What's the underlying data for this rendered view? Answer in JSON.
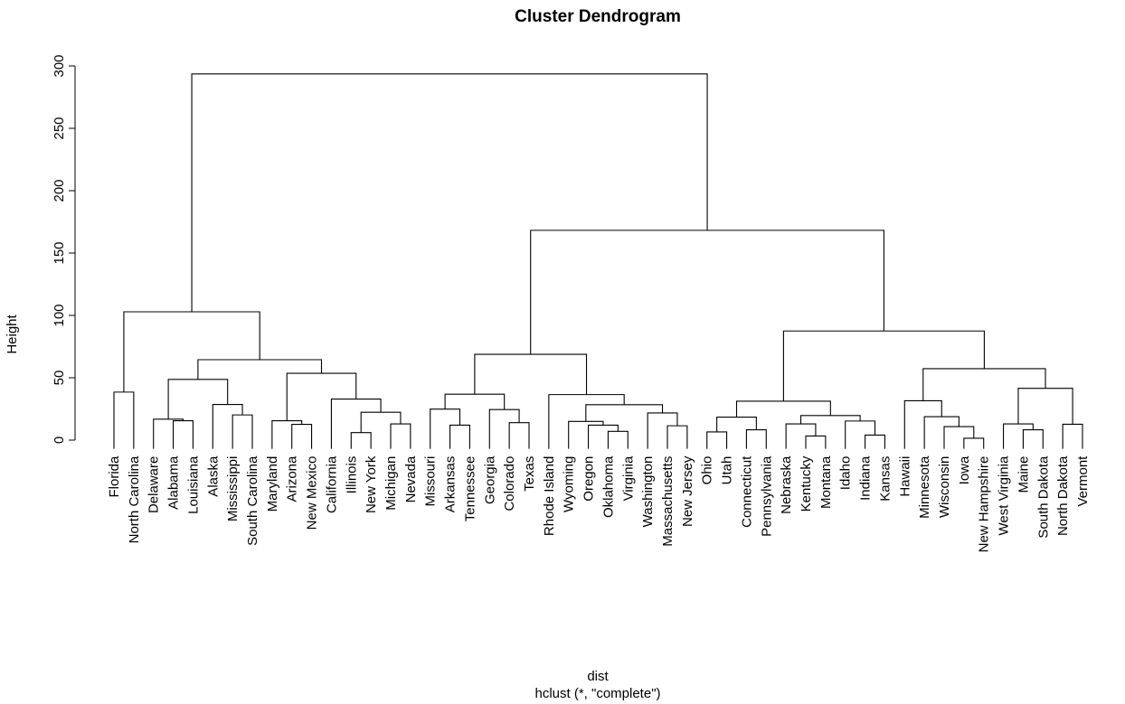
{
  "chart_data": {
    "type": "dendrogram",
    "title": "Cluster Dendrogram",
    "ylabel": "Height",
    "xlabel": "dist",
    "sub": "hclust (*, \"complete\")",
    "ylim": [
      0,
      300
    ],
    "yticks": [
      0,
      50,
      100,
      150,
      200,
      250,
      300
    ],
    "leaves": [
      "Florida",
      "North Carolina",
      "Delaware",
      "Alabama",
      "Louisiana",
      "Alaska",
      "Mississippi",
      "South Carolina",
      "Maryland",
      "Arizona",
      "New Mexico",
      "California",
      "Illinois",
      "New York",
      "Michigan",
      "Nevada",
      "Missouri",
      "Arkansas",
      "Tennessee",
      "Georgia",
      "Colorado",
      "Texas",
      "Rhode Island",
      "Wyoming",
      "Oregon",
      "Oklahoma",
      "Virginia",
      "Washington",
      "Massachusetts",
      "New Jersey",
      "Ohio",
      "Utah",
      "Connecticut",
      "Pennsylvania",
      "Nebraska",
      "Kentucky",
      "Montana",
      "Idaho",
      "Indiana",
      "Kansas",
      "Hawaii",
      "Minnesota",
      "Wisconsin",
      "Iowa",
      "New Hampshire",
      "West Virginia",
      "Maine",
      "South Dakota",
      "North Dakota",
      "Vermont"
    ],
    "leaf_height": -7,
    "merges": [
      [
        0,
        1,
        38.5
      ],
      [
        3,
        4,
        15.5
      ],
      [
        2,
        51,
        16.8
      ],
      [
        6,
        7,
        20.2
      ],
      [
        5,
        53,
        28.6
      ],
      [
        52,
        54,
        48.7
      ],
      [
        9,
        10,
        12.6
      ],
      [
        8,
        56,
        15.5
      ],
      [
        12,
        13,
        6.0
      ],
      [
        14,
        15,
        13.0
      ],
      [
        58,
        59,
        22.3
      ],
      [
        11,
        60,
        32.9
      ],
      [
        57,
        61,
        53.6
      ],
      [
        55,
        62,
        64.5
      ],
      [
        50,
        63,
        102.9
      ],
      [
        17,
        18,
        12.0
      ],
      [
        16,
        65,
        24.9
      ],
      [
        20,
        21,
        14.0
      ],
      [
        19,
        67,
        24.5
      ],
      [
        66,
        68,
        36.8
      ],
      [
        25,
        26,
        7.0
      ],
      [
        24,
        70,
        12.0
      ],
      [
        23,
        71,
        15.0
      ],
      [
        28,
        29,
        11.5
      ],
      [
        27,
        73,
        21.8
      ],
      [
        72,
        74,
        28.4
      ],
      [
        22,
        75,
        36.5
      ],
      [
        69,
        76,
        68.8
      ],
      [
        30,
        31,
        6.6
      ],
      [
        32,
        33,
        8.3
      ],
      [
        78,
        79,
        18.4
      ],
      [
        35,
        36,
        3.3
      ],
      [
        34,
        81,
        13.0
      ],
      [
        38,
        39,
        4.0
      ],
      [
        37,
        83,
        15.3
      ],
      [
        82,
        84,
        19.7
      ],
      [
        80,
        85,
        31.2
      ],
      [
        43,
        44,
        1.5
      ],
      [
        42,
        87,
        10.8
      ],
      [
        41,
        88,
        18.8
      ],
      [
        40,
        89,
        31.6
      ],
      [
        46,
        47,
        8.3
      ],
      [
        45,
        91,
        13.0
      ],
      [
        48,
        49,
        12.7
      ],
      [
        92,
        93,
        41.5
      ],
      [
        90,
        94,
        57.3
      ],
      [
        86,
        95,
        87.5
      ],
      [
        77,
        96,
        168.2
      ],
      [
        64,
        97,
        293.6
      ]
    ]
  }
}
